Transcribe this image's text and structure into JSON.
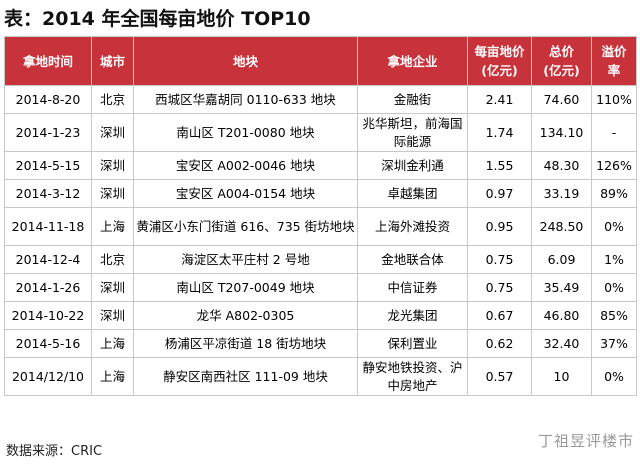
{
  "title": "表：2014 年全国每亩地价 TOP10",
  "headers": [
    "拿地时间",
    "城市",
    "地块",
    "拿地企业",
    "每亩地价\n(亿元)",
    "总价\n(亿元)",
    "溢价\n率"
  ],
  "rows": [
    [
      "2014-8-20",
      "北京",
      "西城区华嘉胡同 0110-633 地块",
      "金融街",
      "2.41",
      "74.60",
      "110%"
    ],
    [
      "2014-1-23",
      "深圳",
      "南山区 T201-0080 地块",
      "兆华斯坦，前海国际能源",
      "1.74",
      "134.10",
      "-"
    ],
    [
      "2014-5-15",
      "深圳",
      "宝安区 A002-0046 地块",
      "深圳金利通",
      "1.55",
      "48.30",
      "126%"
    ],
    [
      "2014-3-12",
      "深圳",
      "宝安区 A004-0154 地块",
      "卓越集团",
      "0.97",
      "33.19",
      "89%"
    ],
    [
      "2014-11-18",
      "上海",
      "黄浦区小东门街道 616、735 街坊地块",
      "上海外滩投资",
      "0.95",
      "248.50",
      "0%"
    ],
    [
      "2014-12-4",
      "北京",
      "海淀区太平庄村 2 号地",
      "金地联合体",
      "0.75",
      "6.09",
      "1%"
    ],
    [
      "2014-1-26",
      "深圳",
      "南山区 T207-0049 地块",
      "中信证券",
      "0.75",
      "35.49",
      "0%"
    ],
    [
      "2014-10-22",
      "深圳",
      "龙华 A802-0305",
      "龙光集团",
      "0.67",
      "46.80",
      "85%"
    ],
    [
      "2014-5-16",
      "上海",
      "杨浦区平凉街道 18 街坊地块",
      "保利置业",
      "0.62",
      "32.40",
      "37%"
    ],
    [
      "2014/12/10",
      "上海",
      "静安区南西社区 111-09 地块",
      "静安地铁投资、沪中房地产",
      "0.57",
      "10",
      "0%"
    ]
  ],
  "row_types": [
    "single",
    "double",
    "single",
    "single",
    "double",
    "single",
    "single",
    "single",
    "single",
    "double"
  ],
  "footer": "数据来源：CRIC",
  "watermark": "丁祖昱评楼市",
  "colors": {
    "header_bg": "#c8323a",
    "header_text": "#ffffff",
    "border": "#c8c8c8"
  }
}
